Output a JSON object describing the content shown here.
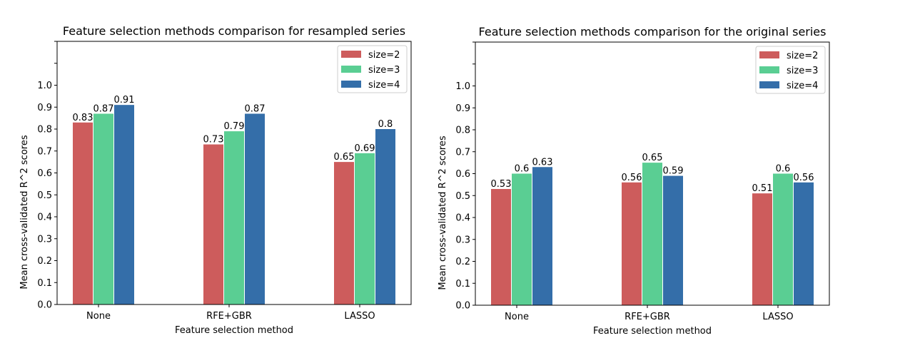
{
  "chart_data": [
    {
      "type": "bar",
      "title": "Feature selection methods comparison for resampled series",
      "xlabel": "Feature selection method",
      "ylabel": "Mean cross-validated R^2 scores",
      "categories": [
        "None",
        "RFE+GBR",
        "LASSO"
      ],
      "ylim": [
        0,
        1.2
      ],
      "yticks": [
        "0.0",
        "0.1",
        "0.2",
        "0.3",
        "0.4",
        "0.5",
        "0.6",
        "0.7",
        "0.8",
        "0.9",
        "1.0"
      ],
      "legend_position": "top-right",
      "grid": false,
      "series": [
        {
          "name": "size=2",
          "color": "#cd5c5c",
          "values": [
            0.83,
            0.73,
            0.65
          ],
          "labels": [
            "0.83",
            "0.73",
            "0.65"
          ]
        },
        {
          "name": "size=3",
          "color": "#5ace93",
          "values": [
            0.87,
            0.79,
            0.69
          ],
          "labels": [
            "0.87",
            "0.79",
            "0.69"
          ]
        },
        {
          "name": "size=4",
          "color": "#346ea9",
          "values": [
            0.91,
            0.87,
            0.8
          ],
          "labels": [
            "0.91",
            "0.87",
            "0.8"
          ]
        }
      ]
    },
    {
      "type": "bar",
      "title": "Feature selection methods comparison for the original series",
      "xlabel": "Feature selection method",
      "ylabel": "Mean cross-validated R^2 scores",
      "categories": [
        "None",
        "RFE+GBR",
        "LASSO"
      ],
      "ylim": [
        0,
        1.2
      ],
      "yticks": [
        "0.0",
        "0.1",
        "0.2",
        "0.3",
        "0.4",
        "0.5",
        "0.6",
        "0.7",
        "0.8",
        "0.9",
        "1.0"
      ],
      "legend_position": "top-right",
      "grid": false,
      "series": [
        {
          "name": "size=2",
          "color": "#cd5c5c",
          "values": [
            0.53,
            0.56,
            0.51
          ],
          "labels": [
            "0.53",
            "0.56",
            "0.51"
          ]
        },
        {
          "name": "size=3",
          "color": "#5ace93",
          "values": [
            0.6,
            0.65,
            0.6
          ],
          "labels": [
            "0.6",
            "0.65",
            "0.6"
          ]
        },
        {
          "name": "size=4",
          "color": "#346ea9",
          "values": [
            0.63,
            0.59,
            0.56
          ],
          "labels": [
            "0.63",
            "0.59",
            "0.56"
          ]
        }
      ]
    }
  ]
}
